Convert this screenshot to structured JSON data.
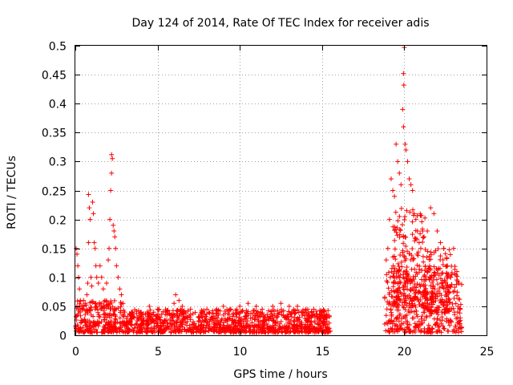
{
  "chart_data": {
    "type": "scatter",
    "title": "Day 124 of 2014, Rate Of TEC Index for receiver adis",
    "xlabel": "GPS time / hours",
    "ylabel": "ROTI / TECUs",
    "xlim": [
      0,
      25
    ],
    "ylim": [
      0,
      0.5
    ],
    "x_ticks": [
      0,
      5,
      10,
      15,
      20,
      25
    ],
    "x_tick_labels": [
      "0",
      "5",
      "10",
      "15",
      "20",
      "25"
    ],
    "y_ticks": [
      0,
      0.05,
      0.1,
      0.15,
      0.2,
      0.25,
      0.3,
      0.35,
      0.4,
      0.45,
      0.5
    ],
    "y_tick_labels": [
      "0",
      "0.05",
      "0.1",
      "0.15",
      "0.2",
      "0.25",
      "0.3",
      "0.35",
      "0.4",
      "0.45",
      "0.5"
    ],
    "grid": true,
    "marker": "+",
    "marker_color": "#ff0000",
    "series": [
      {
        "name": "ROTI",
        "points": [
          [
            0.05,
            0.15
          ],
          [
            0.1,
            0.14
          ],
          [
            0.15,
            0.12
          ],
          [
            0.2,
            0.1
          ],
          [
            0.25,
            0.08
          ],
          [
            0.3,
            0.06
          ],
          [
            0.1,
            0.05
          ],
          [
            0.2,
            0.045
          ],
          [
            0.3,
            0.04
          ],
          [
            0.4,
            0.05
          ],
          [
            0.5,
            0.06
          ],
          [
            0.6,
            0.055
          ],
          [
            0.7,
            0.07
          ],
          [
            0.75,
            0.09
          ],
          [
            0.8,
            0.16
          ],
          [
            0.8,
            0.243
          ],
          [
            0.85,
            0.22
          ],
          [
            0.9,
            0.2
          ],
          [
            0.95,
            0.1
          ],
          [
            1.0,
            0.085
          ],
          [
            1.05,
            0.23
          ],
          [
            1.1,
            0.21
          ],
          [
            1.15,
            0.16
          ],
          [
            1.2,
            0.15
          ],
          [
            1.25,
            0.12
          ],
          [
            1.3,
            0.1
          ],
          [
            1.4,
            0.09
          ],
          [
            1.5,
            0.12
          ],
          [
            1.6,
            0.1
          ],
          [
            1.7,
            0.08
          ],
          [
            1.8,
            0.06
          ],
          [
            1.9,
            0.09
          ],
          [
            2.0,
            0.13
          ],
          [
            2.05,
            0.15
          ],
          [
            2.1,
            0.2
          ],
          [
            2.15,
            0.25
          ],
          [
            2.2,
            0.28
          ],
          [
            2.2,
            0.312
          ],
          [
            2.25,
            0.305
          ],
          [
            2.3,
            0.19
          ],
          [
            2.35,
            0.18
          ],
          [
            2.4,
            0.17
          ],
          [
            2.45,
            0.15
          ],
          [
            2.5,
            0.12
          ],
          [
            2.6,
            0.1
          ],
          [
            2.7,
            0.08
          ],
          [
            2.8,
            0.07
          ],
          [
            2.9,
            0.055
          ],
          [
            3.0,
            0.04
          ],
          [
            3.5,
            0.035
          ],
          [
            4.0,
            0.04
          ],
          [
            4.5,
            0.05
          ],
          [
            5.0,
            0.045
          ],
          [
            5.5,
            0.04
          ],
          [
            6.0,
            0.055
          ],
          [
            6.1,
            0.07
          ],
          [
            6.3,
            0.06
          ],
          [
            6.5,
            0.05
          ],
          [
            7.0,
            0.045
          ],
          [
            8.0,
            0.045
          ],
          [
            9.0,
            0.05
          ],
          [
            10.0,
            0.05
          ],
          [
            10.5,
            0.055
          ],
          [
            11.0,
            0.05
          ],
          [
            12.0,
            0.05
          ],
          [
            12.5,
            0.055
          ],
          [
            13.0,
            0.05
          ],
          [
            13.5,
            0.05
          ],
          [
            14.0,
            0.045
          ],
          [
            14.5,
            0.045
          ],
          [
            15.0,
            0.04
          ],
          [
            15.3,
            0.03
          ],
          [
            18.9,
            0.13
          ],
          [
            19.0,
            0.15
          ],
          [
            19.1,
            0.2
          ],
          [
            19.2,
            0.27
          ],
          [
            19.3,
            0.25
          ],
          [
            19.4,
            0.24
          ],
          [
            19.5,
            0.33
          ],
          [
            19.6,
            0.3
          ],
          [
            19.7,
            0.28
          ],
          [
            19.8,
            0.26
          ],
          [
            19.9,
            0.39
          ],
          [
            19.95,
            0.36
          ],
          [
            20.0,
            0.497
          ],
          [
            19.95,
            0.452
          ],
          [
            19.97,
            0.432
          ],
          [
            20.05,
            0.33
          ],
          [
            20.1,
            0.32
          ],
          [
            20.2,
            0.3
          ],
          [
            20.3,
            0.27
          ],
          [
            20.4,
            0.26
          ],
          [
            20.5,
            0.25
          ],
          [
            20.6,
            0.21
          ],
          [
            20.7,
            0.2
          ],
          [
            20.8,
            0.18
          ],
          [
            20.9,
            0.16
          ],
          [
            21.0,
            0.15
          ],
          [
            21.2,
            0.17
          ],
          [
            21.4,
            0.18
          ],
          [
            21.6,
            0.22
          ],
          [
            21.8,
            0.21
          ],
          [
            22.0,
            0.18
          ],
          [
            22.2,
            0.16
          ],
          [
            22.4,
            0.15
          ],
          [
            22.6,
            0.12
          ],
          [
            22.8,
            0.1
          ],
          [
            23.0,
            0.15
          ],
          [
            23.2,
            0.11
          ],
          [
            23.3,
            0.09
          ],
          [
            23.4,
            0.045
          ],
          [
            23.4,
            0.03
          ]
        ],
        "dense_bands": [
          {
            "x_range": [
              0.0,
              3.0
            ],
            "y_range": [
              0.005,
              0.06
            ]
          },
          {
            "x_range": [
              3.0,
              15.5
            ],
            "y_range": [
              0.005,
              0.045
            ]
          },
          {
            "x_range": [
              18.8,
              23.5
            ],
            "y_range": [
              0.005,
              0.12
            ]
          },
          {
            "x_range": [
              19.3,
              21.3
            ],
            "y_range": [
              0.05,
              0.22
            ]
          },
          {
            "x_range": [
              21.3,
              22.8
            ],
            "y_range": [
              0.04,
              0.15
            ]
          }
        ]
      }
    ]
  }
}
